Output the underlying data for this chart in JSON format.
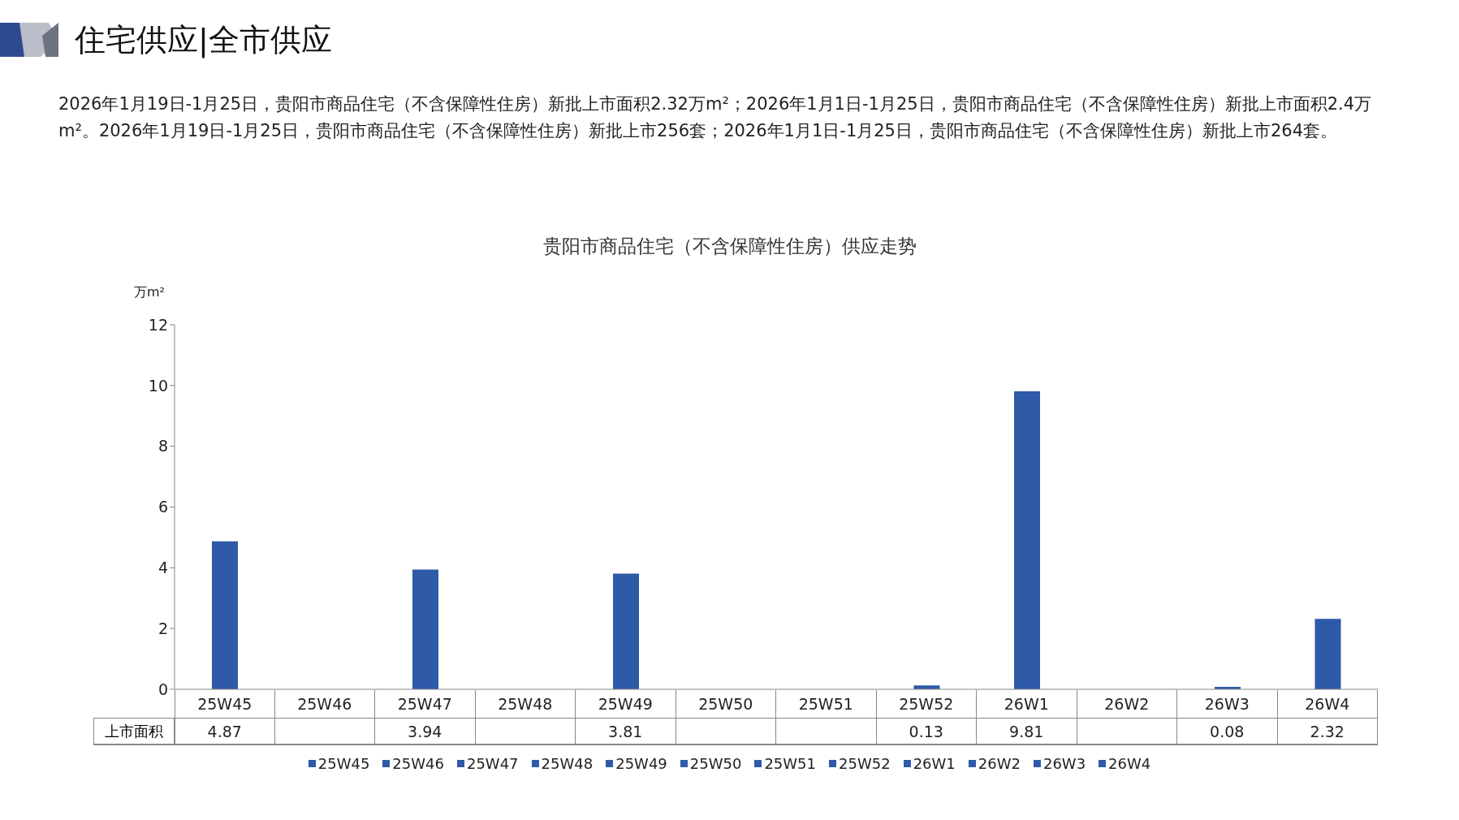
{
  "chart_data": {
    "type": "bar",
    "title": "贵阳市商品住宅（不含保障性住房）供应走势",
    "annotations": [
      "住宅供应|全市供应",
      "2026年1月19日-1月25日，贵阳市商品住宅（不含保障性住房）新批上市面积2.32万m²；2026年1月1日-1月25日，贵阳市商品住宅（不含保障性住房）新批上市面积2.4万m²。2026年1月19日-1月25日，贵阳市商品住宅（不含保障性住房）新批上市256套；2026年1月1日-1月25日，贵阳市商品住宅（不含保障性住房）新批上市264套。"
    ],
    "ylabel": "万m²",
    "categories": [
      "25W45",
      "25W46",
      "25W47",
      "25W48",
      "25W49",
      "25W50",
      "25W51",
      "25W52",
      "26W1",
      "26W2",
      "26W3",
      "26W4"
    ],
    "series": [
      {
        "name": "上市面积",
        "color": "#2f5aa8",
        "values": [
          4.87,
          null,
          3.94,
          null,
          3.81,
          null,
          null,
          0.13,
          9.81,
          null,
          0.08,
          2.32
        ]
      }
    ],
    "ylim": [
      0,
      12
    ],
    "yticks": [
      0,
      2,
      4,
      6,
      8,
      10,
      12
    ],
    "grid": false,
    "legend": "bottom",
    "data_labels": true
  }
}
